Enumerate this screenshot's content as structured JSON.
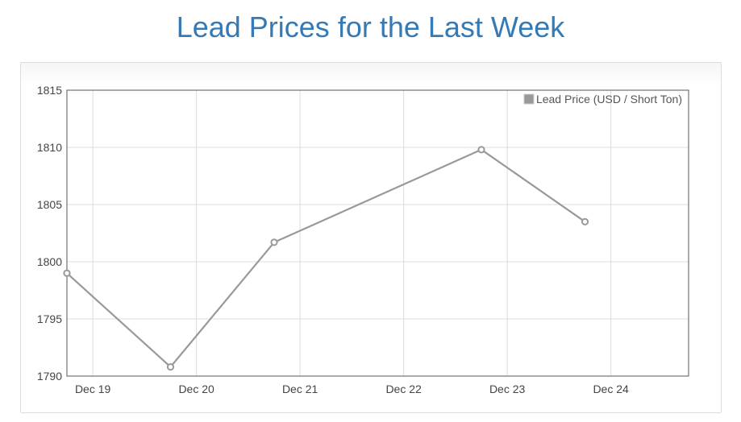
{
  "page": {
    "title": "Lead Prices for the Last Week"
  },
  "chart_data": {
    "type": "line",
    "x_ticks": [
      "Dec 19",
      "Dec 20",
      "Dec 21",
      "Dec 22",
      "Dec 23",
      "Dec 24"
    ],
    "x_range": [
      "2023-12-18T18:00",
      "2023-12-24T18:00"
    ],
    "ylim": [
      1790,
      1815
    ],
    "y_ticks": [
      1790,
      1795,
      1800,
      1805,
      1810,
      1815
    ],
    "grid": true,
    "legend_position": "top-right",
    "series": [
      {
        "name": "Lead Price (USD / Short Ton)",
        "color": "#999999",
        "points": [
          {
            "x": "2023-12-18T18:00",
            "y": 1799.0
          },
          {
            "x": "2023-12-19T18:00",
            "y": 1790.8
          },
          {
            "x": "2023-12-20T18:00",
            "y": 1801.7
          },
          {
            "x": "2023-12-22T18:00",
            "y": 1809.8
          },
          {
            "x": "2023-12-23T18:00",
            "y": 1803.5
          }
        ]
      }
    ]
  }
}
